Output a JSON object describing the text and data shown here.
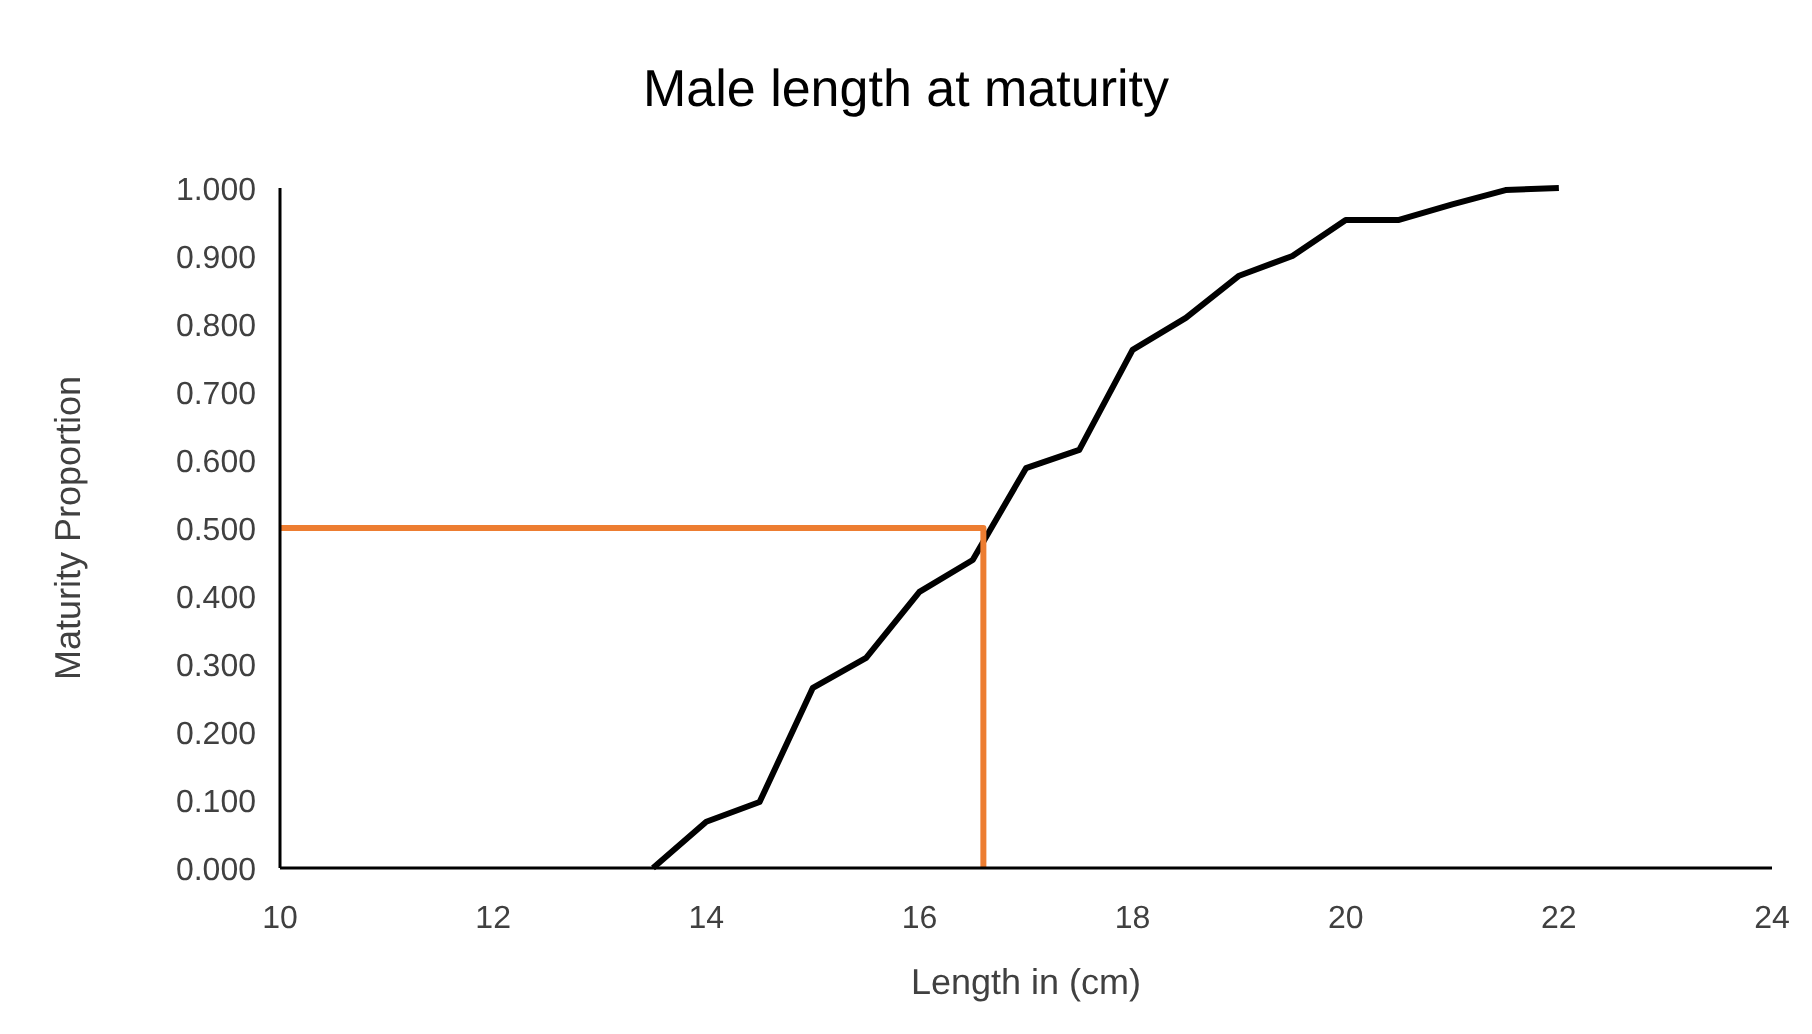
{
  "chart_data": {
    "type": "line",
    "title": "Male length at maturity",
    "xlabel": "Length in (cm)",
    "ylabel": "Maturity Proportion",
    "xlim": [
      10,
      24
    ],
    "xticks": [
      10,
      12,
      14,
      16,
      18,
      20,
      22,
      24
    ],
    "ylim": [
      0,
      1
    ],
    "yticks": [
      {
        "value": 0,
        "label": "0.000"
      },
      {
        "value": 0.1,
        "label": "0.100"
      },
      {
        "value": 0.2,
        "label": "0.200"
      },
      {
        "value": 0.3,
        "label": "0.300"
      },
      {
        "value": 0.4,
        "label": "0.400"
      },
      {
        "value": 0.5,
        "label": "0.500"
      },
      {
        "value": 0.6,
        "label": "0.600"
      },
      {
        "value": 0.7,
        "label": "0.700"
      },
      {
        "value": 0.8,
        "label": "0.800"
      },
      {
        "value": 0.9,
        "label": "0.900"
      },
      {
        "value": 1,
        "label": "1.000"
      }
    ],
    "grid": false,
    "marker": "none",
    "line_style": "solid",
    "series": [
      {
        "color": "#000000",
        "x": [
          13.5,
          14,
          14.5,
          15,
          15.5,
          16,
          16.5,
          17,
          17.5,
          18,
          18.5,
          19,
          19.5,
          20,
          20.5,
          21,
          21.5,
          22
        ],
        "values": [
          0,
          0.068,
          0.097,
          0.265,
          0.309,
          0.406,
          0.453,
          0.588,
          0.615,
          0.762,
          0.809,
          0.871,
          0.9,
          0.953,
          0.953,
          0.976,
          0.997,
          1.0
        ]
      },
      {
        "color": "#ed7d31",
        "x": [
          10,
          16.6,
          16.6
        ],
        "values": [
          0.5,
          0.5,
          0
        ]
      }
    ]
  }
}
